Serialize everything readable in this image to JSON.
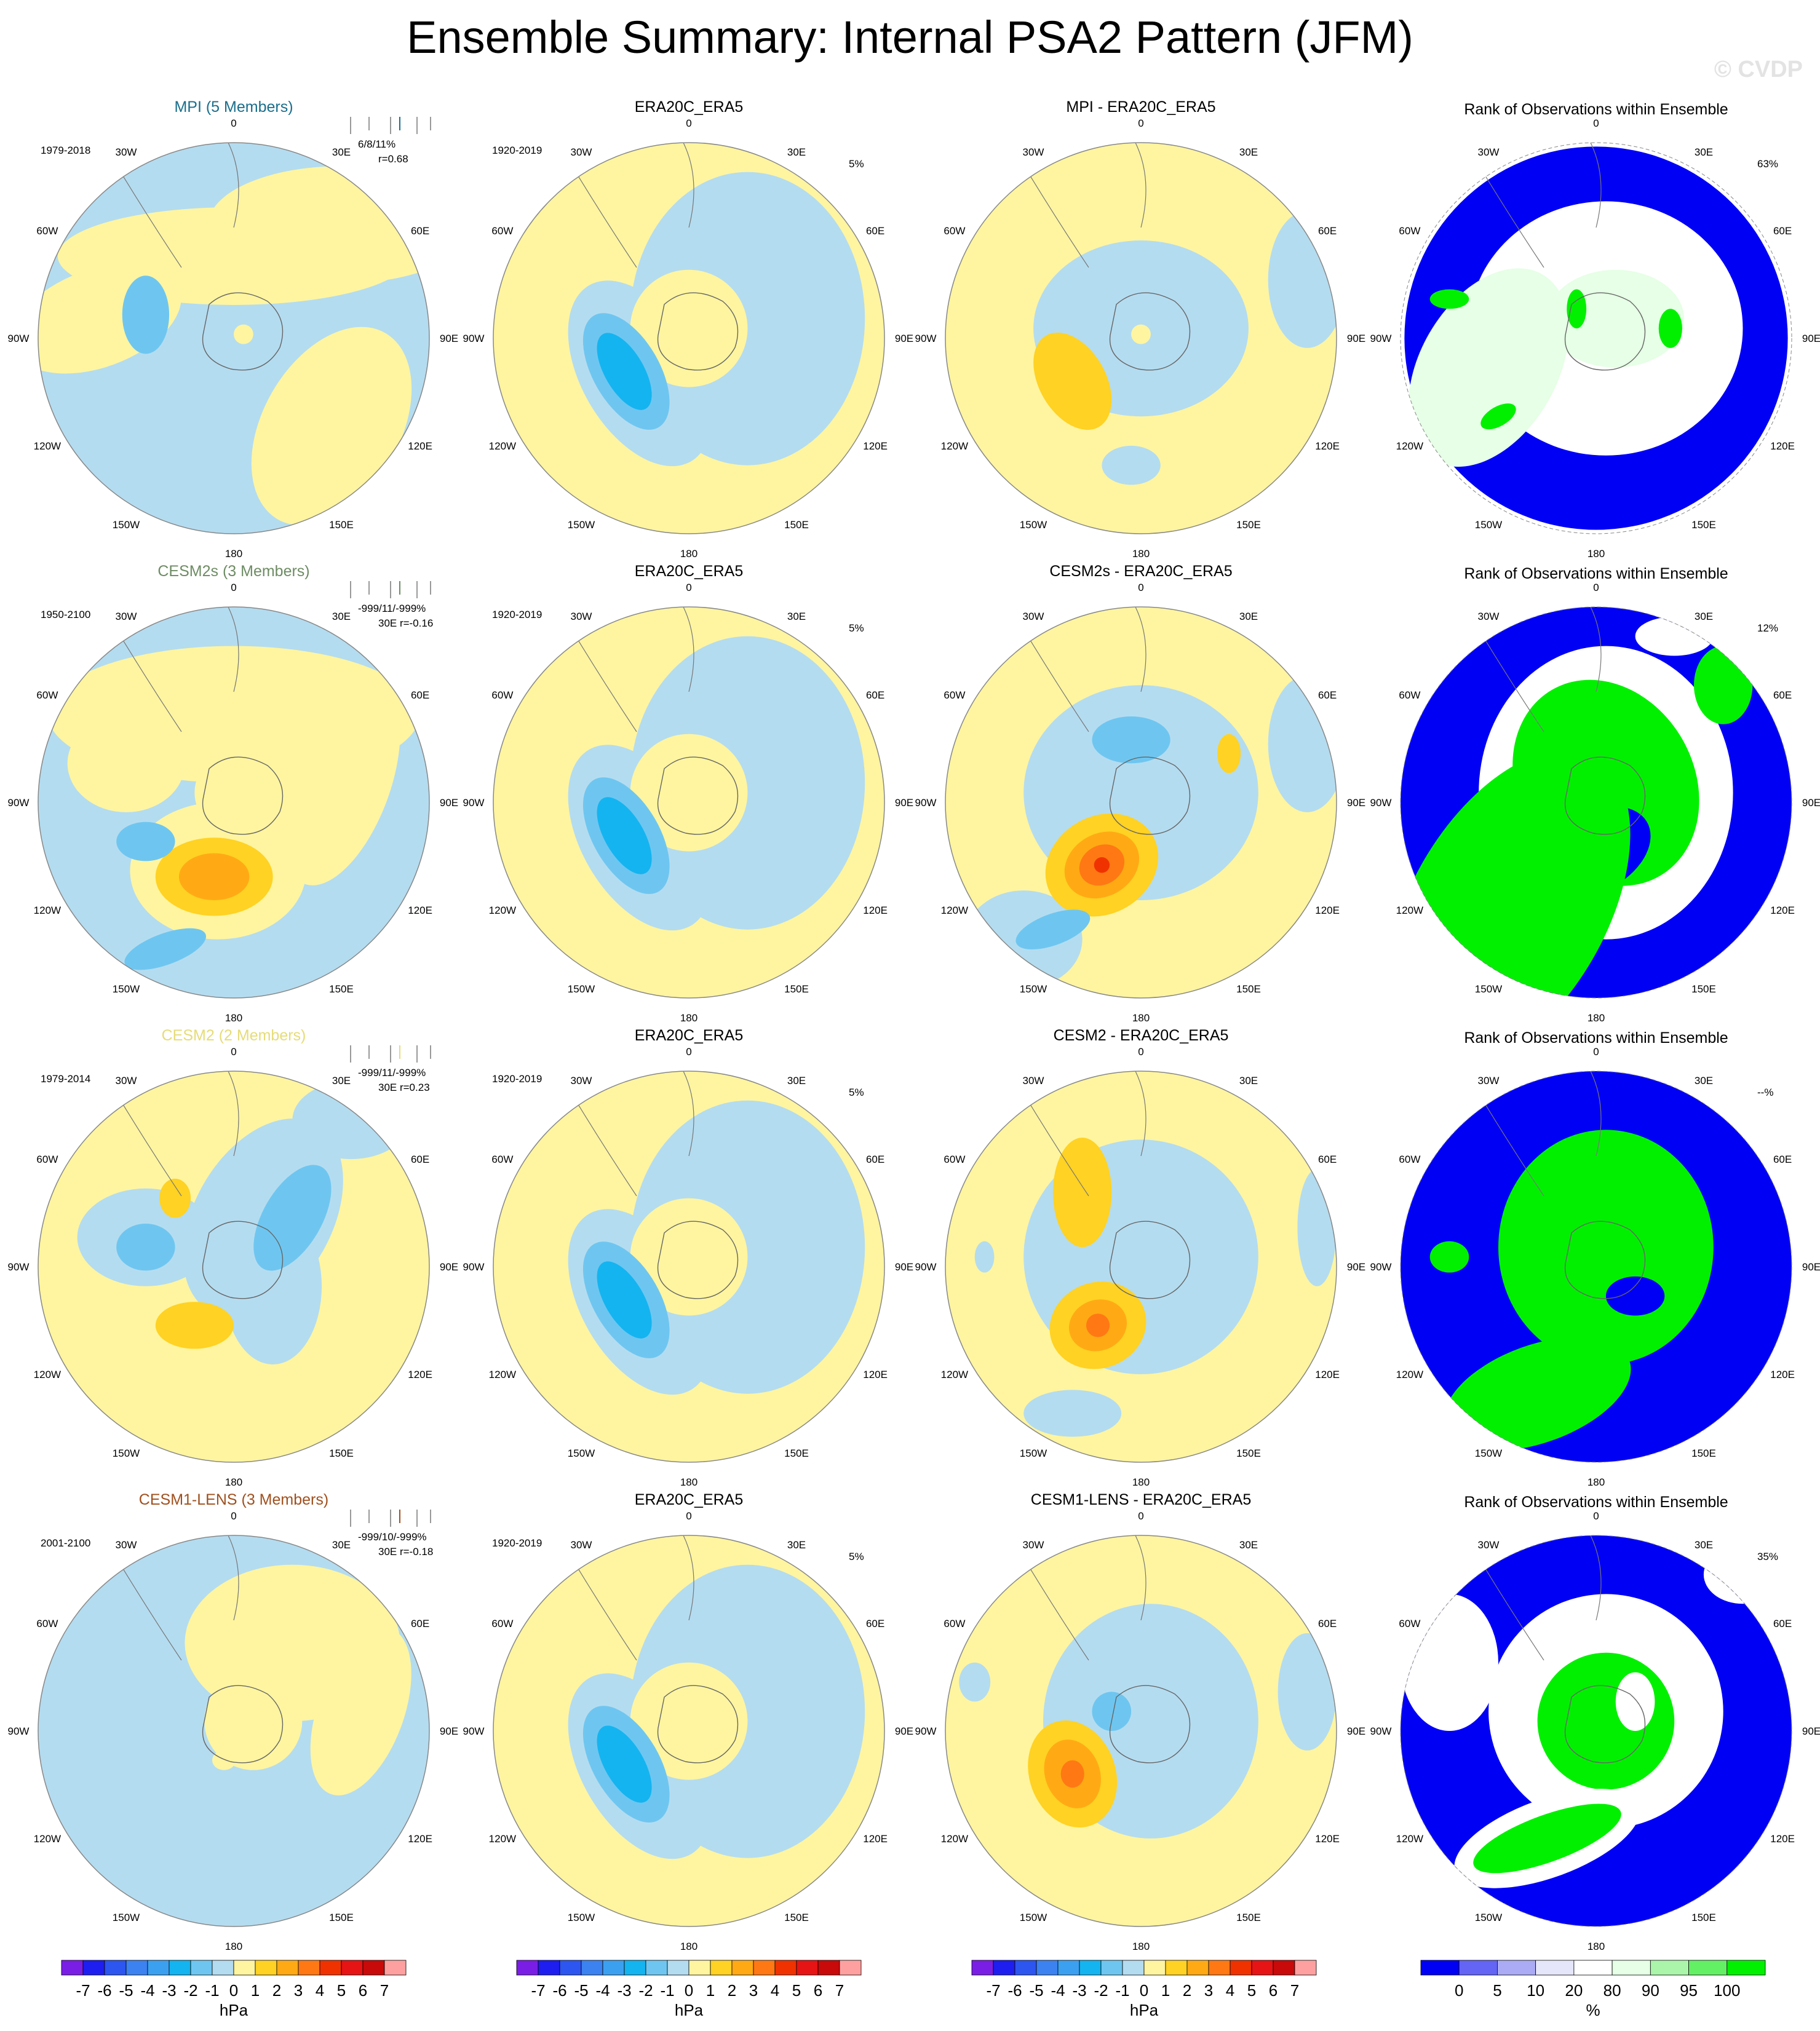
{
  "title": "Ensemble Summary: Internal PSA2 Pattern (JFM)",
  "watermark": "© CVDP",
  "colors": {
    "neg1": "#b4dcf0",
    "neg2": "#6ec6f0",
    "neg3": "#14b4f0",
    "pos1": "#fff5a0",
    "pos2": "#ffd223",
    "pos3": "#ffaa14",
    "pos4": "#ff7814",
    "pos5": "#f03200",
    "rank_low": "#0000f5",
    "rank_mid": "#ffffff",
    "rank_90": "#e6ffe6",
    "rank_high": "#00f000"
  },
  "rows": [
    {
      "model": "MPI (5 Members)",
      "model_color": "#1a6e8c",
      "years": "1979-2018",
      "stat_line1": "6/8/11%",
      "stat_line2": "r=0.68",
      "obs_title": "ERA20C_ERA5",
      "obs_years": "1920-2019",
      "obs_pct": "5%",
      "diff_title": "MPI - ERA20C_ERA5",
      "rank_title": "Rank of Observations within Ensemble",
      "rank_pct": "63%"
    },
    {
      "model": "CESM2s (3 Members)",
      "model_color": "#6e8c64",
      "years": "1950-2100",
      "stat_line1": "-999/11/-999%",
      "stat_line2": "30E r=-0.16",
      "obs_title": "ERA20C_ERA5",
      "obs_years": "1920-2019",
      "obs_pct": "5%",
      "diff_title": "CESM2s - ERA20C_ERA5",
      "rank_title": "Rank of Observations within Ensemble",
      "rank_pct": "12%"
    },
    {
      "model": "CESM2 (2 Members)",
      "model_color": "#e6dc78",
      "years": "1979-2014",
      "stat_line1": "-999/11/-999%",
      "stat_line2": "30E r=0.23",
      "obs_title": "ERA20C_ERA5",
      "obs_years": "1920-2019",
      "obs_pct": "5%",
      "diff_title": "CESM2 - ERA20C_ERA5",
      "rank_title": "Rank of Observations within Ensemble",
      "rank_pct": "--%"
    },
    {
      "model": "CESM1-LENS (3 Members)",
      "model_color": "#a0501e",
      "years": "2001-2100",
      "stat_line1": "-999/10/-999%",
      "stat_line2": "30E r=-0.18",
      "obs_title": "ERA20C_ERA5",
      "obs_years": "1920-2019",
      "obs_pct": "5%",
      "diff_title": "CESM1-LENS - ERA20C_ERA5",
      "rank_title": "Rank of Observations within Ensemble",
      "rank_pct": "35%"
    }
  ],
  "longitude_labels": [
    "0",
    "30E",
    "60E",
    "90E",
    "120E",
    "150E",
    "180",
    "150W",
    "120W",
    "90W",
    "60W",
    "30W"
  ],
  "chart_data": {
    "type": "heatmap",
    "maps": [
      [
        {
          "bg": "neg1",
          "blobs": [
            [
              0.55,
              0.58,
              0.68,
              0.3,
              0,
              "pos1"
            ],
            [
              -0.7,
              0.1,
              0.45,
              0.25,
              -20,
              "pos1"
            ],
            [
              0.5,
              -0.45,
              0.35,
              0.55,
              30,
              "pos1"
            ],
            [
              0.0,
              0.42,
              0.9,
              0.25,
              0,
              "pos1"
            ],
            [
              -0.45,
              0.12,
              0.12,
              0.2,
              0,
              "neg2"
            ],
            [
              0.05,
              0.02,
              0.05,
              0.05,
              0,
              "pos1"
            ]
          ]
        },
        {
          "bg": "pos1",
          "blobs": [
            [
              0.3,
              0.1,
              0.6,
              0.75,
              0,
              "neg1"
            ],
            [
              -0.25,
              -0.18,
              0.3,
              0.52,
              -30,
              "neg1"
            ],
            [
              0.0,
              0.05,
              0.3,
              0.3,
              0,
              "pos1"
            ],
            [
              0.95,
              0.25,
              0.02,
              0.02,
              0,
              "pos1"
            ],
            [
              -0.32,
              -0.17,
              0.17,
              0.33,
              -30,
              "neg2"
            ],
            [
              -0.33,
              -0.17,
              0.1,
              0.22,
              -30,
              "neg3"
            ]
          ]
        },
        {
          "bg": "pos1",
          "blobs": [
            [
              0.0,
              0.05,
              0.55,
              0.45,
              0,
              "neg1"
            ],
            [
              0.85,
              0.3,
              0.2,
              0.35,
              0,
              "neg1"
            ],
            [
              -0.05,
              -0.65,
              0.15,
              0.1,
              0,
              "neg1"
            ],
            [
              -0.35,
              -0.22,
              0.17,
              0.27,
              -30,
              "pos2"
            ],
            [
              0.0,
              0.02,
              0.05,
              0.05,
              0,
              "pos1"
            ]
          ]
        },
        {
          "bg": "rank_mid",
          "blobs": [
            [
              0.0,
              0.0,
              0.98,
              0.98,
              0,
              "rank_low"
            ],
            [
              0.05,
              0.05,
              0.7,
              0.65,
              0,
              "rank_mid"
            ],
            [
              -0.55,
              -0.15,
              0.35,
              0.55,
              30,
              "rank_90"
            ],
            [
              0.05,
              0.1,
              0.3,
              0.2,
              0,
              "rank_mid"
            ],
            [
              0.1,
              0.1,
              0.35,
              0.25,
              0,
              "rank_90"
            ],
            [
              -0.1,
              0.15,
              0.05,
              0.1,
              0,
              "rank_high"
            ],
            [
              0.38,
              0.05,
              0.06,
              0.1,
              0,
              "rank_high"
            ],
            [
              -0.75,
              0.2,
              0.1,
              0.05,
              0,
              "rank_high"
            ],
            [
              -0.5,
              -0.4,
              0.1,
              0.05,
              -30,
              "rank_high"
            ]
          ]
        }
      ],
      [
        {
          "bg": "neg1",
          "blobs": [
            [
              0.0,
              0.45,
              0.95,
              0.35,
              0,
              "pos1"
            ],
            [
              0.55,
              0.1,
              0.25,
              0.55,
              20,
              "pos1"
            ],
            [
              -0.55,
              0.2,
              0.3,
              0.25,
              0,
              "pos1"
            ],
            [
              -0.08,
              -0.35,
              0.45,
              0.35,
              0,
              "pos1"
            ],
            [
              0.1,
              0.05,
              0.3,
              0.25,
              0,
              "pos1"
            ],
            [
              -0.1,
              -0.38,
              0.3,
              0.2,
              0,
              "pos2"
            ],
            [
              -0.1,
              -0.38,
              0.18,
              0.12,
              0,
              "pos3"
            ],
            [
              -0.45,
              -0.2,
              0.15,
              0.1,
              0,
              "neg2"
            ],
            [
              -0.35,
              -0.75,
              0.22,
              0.08,
              -20,
              "neg2"
            ]
          ]
        },
        {
          "bg": "pos1",
          "blobs": [
            [
              0.3,
              0.1,
              0.6,
              0.75,
              0,
              "neg1"
            ],
            [
              -0.25,
              -0.18,
              0.3,
              0.52,
              -30,
              "neg1"
            ],
            [
              0.0,
              0.05,
              0.3,
              0.3,
              0,
              "pos1"
            ],
            [
              -0.32,
              -0.17,
              0.17,
              0.33,
              -30,
              "neg2"
            ],
            [
              -0.33,
              -0.17,
              0.1,
              0.22,
              -30,
              "neg3"
            ]
          ]
        },
        {
          "bg": "pos1",
          "blobs": [
            [
              0.0,
              0.05,
              0.6,
              0.55,
              0,
              "neg1"
            ],
            [
              0.85,
              0.3,
              0.2,
              0.35,
              0,
              "neg1"
            ],
            [
              -0.6,
              -0.7,
              0.3,
              0.25,
              0,
              "neg1"
            ],
            [
              -0.05,
              0.32,
              0.2,
              0.12,
              0,
              "neg2"
            ],
            [
              0.45,
              0.25,
              0.06,
              0.1,
              0,
              "pos2"
            ],
            [
              -0.2,
              -0.32,
              0.3,
              0.25,
              -30,
              "pos2"
            ],
            [
              -0.2,
              -0.32,
              0.2,
              0.16,
              -30,
              "pos3"
            ],
            [
              -0.2,
              -0.32,
              0.12,
              0.1,
              -30,
              "pos4"
            ],
            [
              -0.2,
              -0.32,
              0.04,
              0.04,
              0,
              "pos5"
            ],
            [
              -0.45,
              -0.65,
              0.2,
              0.08,
              -20,
              "neg2"
            ]
          ]
        },
        {
          "bg": "rank_low",
          "blobs": [
            [
              0.05,
              0.05,
              0.65,
              0.75,
              0,
              "rank_mid"
            ],
            [
              0.05,
              0.1,
              0.45,
              0.55,
              -30,
              "rank_high"
            ],
            [
              0.0,
              -0.25,
              0.3,
              0.2,
              -30,
              "rank_low"
            ],
            [
              -0.45,
              -0.55,
              0.5,
              0.9,
              30,
              "rank_high"
            ],
            [
              0.65,
              0.6,
              0.15,
              0.2,
              0,
              "rank_high"
            ],
            [
              0.4,
              0.85,
              0.2,
              0.1,
              0,
              "rank_mid"
            ]
          ]
        }
      ],
      [
        {
          "bg": "pos1",
          "blobs": [
            [
              0.15,
              0.25,
              0.35,
              0.55,
              30,
              "neg1"
            ],
            [
              -0.45,
              0.15,
              0.35,
              0.25,
              0,
              "neg1"
            ],
            [
              0.2,
              -0.1,
              0.25,
              0.4,
              0,
              "neg1"
            ],
            [
              0.6,
              0.75,
              0.3,
              0.2,
              0,
              "neg1"
            ],
            [
              0.3,
              0.25,
              0.15,
              0.3,
              30,
              "neg2"
            ],
            [
              -0.45,
              0.1,
              0.15,
              0.12,
              0,
              "neg2"
            ],
            [
              -0.2,
              -0.3,
              0.2,
              0.12,
              0,
              "pos2"
            ],
            [
              -0.3,
              0.35,
              0.08,
              0.1,
              0,
              "pos2"
            ]
          ]
        },
        {
          "bg": "pos1",
          "blobs": [
            [
              0.3,
              0.1,
              0.6,
              0.75,
              0,
              "neg1"
            ],
            [
              -0.25,
              -0.18,
              0.3,
              0.52,
              -30,
              "neg1"
            ],
            [
              0.0,
              0.05,
              0.3,
              0.3,
              0,
              "pos1"
            ],
            [
              -0.32,
              -0.17,
              0.17,
              0.33,
              -30,
              "neg2"
            ],
            [
              -0.33,
              -0.17,
              0.1,
              0.22,
              -30,
              "neg3"
            ]
          ]
        },
        {
          "bg": "pos1",
          "blobs": [
            [
              0.0,
              0.05,
              0.6,
              0.6,
              0,
              "neg1"
            ],
            [
              0.9,
              0.2,
              0.1,
              0.3,
              0,
              "neg1"
            ],
            [
              -0.8,
              0.05,
              0.05,
              0.08,
              0,
              "neg1"
            ],
            [
              -0.3,
              0.38,
              0.15,
              0.28,
              0,
              "pos2"
            ],
            [
              -0.22,
              -0.3,
              0.25,
              0.22,
              -20,
              "pos2"
            ],
            [
              -0.22,
              -0.3,
              0.15,
              0.13,
              -20,
              "pos3"
            ],
            [
              -0.22,
              -0.3,
              0.06,
              0.06,
              0,
              "pos4"
            ],
            [
              -0.35,
              -0.75,
              0.25,
              0.12,
              0,
              "neg1"
            ]
          ]
        },
        {
          "bg": "rank_low",
          "blobs": [
            [
              0.05,
              0.1,
              0.55,
              0.6,
              0,
              "rank_high"
            ],
            [
              0.2,
              -0.15,
              0.15,
              0.1,
              0,
              "rank_low"
            ],
            [
              -0.3,
              -0.65,
              0.5,
              0.25,
              -20,
              "rank_high"
            ],
            [
              -0.75,
              0.05,
              0.1,
              0.08,
              0,
              "rank_high"
            ]
          ]
        }
      ],
      [
        {
          "bg": "neg1",
          "blobs": [
            [
              0.3,
              0.45,
              0.55,
              0.4,
              0,
              "pos1"
            ],
            [
              0.65,
              0.1,
              0.22,
              0.45,
              20,
              "pos1"
            ],
            [
              0.1,
              0.05,
              0.25,
              0.25,
              0,
              "pos1"
            ],
            [
              -0.05,
              -0.15,
              0.06,
              0.05,
              0,
              "pos1"
            ]
          ]
        },
        {
          "bg": "pos1",
          "blobs": [
            [
              0.3,
              0.1,
              0.6,
              0.75,
              0,
              "neg1"
            ],
            [
              -0.25,
              -0.18,
              0.3,
              0.52,
              -30,
              "neg1"
            ],
            [
              0.0,
              0.05,
              0.3,
              0.3,
              0,
              "pos1"
            ],
            [
              -0.32,
              -0.17,
              0.17,
              0.33,
              -30,
              "neg2"
            ],
            [
              -0.33,
              -0.17,
              0.1,
              0.22,
              -30,
              "neg3"
            ]
          ]
        },
        {
          "bg": "pos1",
          "blobs": [
            [
              0.05,
              0.05,
              0.55,
              0.6,
              0,
              "neg1"
            ],
            [
              0.85,
              0.2,
              0.15,
              0.3,
              0,
              "neg1"
            ],
            [
              -0.15,
              0.1,
              0.1,
              0.1,
              0,
              "neg2"
            ],
            [
              -0.35,
              -0.22,
              0.22,
              0.28,
              -20,
              "pos2"
            ],
            [
              -0.35,
              -0.22,
              0.14,
              0.18,
              -20,
              "pos3"
            ],
            [
              -0.35,
              -0.22,
              0.06,
              0.07,
              0,
              "pos4"
            ],
            [
              -0.85,
              0.25,
              0.08,
              0.1,
              0,
              "neg1"
            ]
          ]
        },
        {
          "bg": "rank_low",
          "blobs": [
            [
              0.05,
              0.1,
              0.6,
              0.6,
              0,
              "rank_mid"
            ],
            [
              0.05,
              0.05,
              0.35,
              0.35,
              -20,
              "rank_high"
            ],
            [
              0.2,
              0.15,
              0.1,
              0.15,
              0,
              "rank_mid"
            ],
            [
              -0.25,
              -0.55,
              0.5,
              0.2,
              -20,
              "rank_mid"
            ],
            [
              -0.25,
              -0.55,
              0.4,
              0.12,
              -20,
              "rank_high"
            ],
            [
              -0.75,
              0.35,
              0.25,
              0.35,
              0,
              "rank_mid"
            ],
            [
              0.75,
              0.8,
              0.2,
              0.15,
              0,
              "rank_mid"
            ]
          ]
        }
      ]
    ],
    "colorbar_hpa": {
      "xlabel": "hPa",
      "levels": [
        "-7",
        "-6",
        "-5",
        "-4",
        "-3",
        "-2",
        "-1",
        "0",
        "1",
        "2",
        "3",
        "4",
        "5",
        "6",
        "7"
      ],
      "colors": [
        "#7a1ee6",
        "#1e1ef0",
        "#2d55f0",
        "#3c82f0",
        "#3ca0f0",
        "#14b4f0",
        "#6ec6f0",
        "#b4dcf0",
        "#fff5a0",
        "#ffd223",
        "#ffaa14",
        "#ff7814",
        "#f03200",
        "#e61414",
        "#c80a0a",
        "#ffa0a0"
      ]
    },
    "colorbar_rank": {
      "xlabel": "%",
      "levels": [
        "0",
        "5",
        "10",
        "20",
        "80",
        "90",
        "95",
        "100"
      ],
      "colors": [
        "#0000f5",
        "#6464f5",
        "#aaaaf5",
        "#e6e6fa",
        "#ffffff",
        "#e6ffe6",
        "#aaf5aa",
        "#64f064",
        "#00f000"
      ]
    }
  }
}
